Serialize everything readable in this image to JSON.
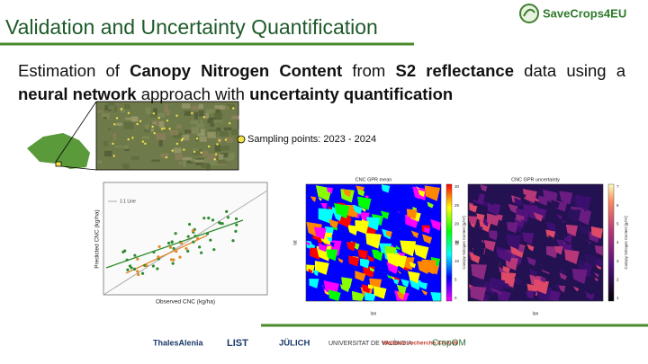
{
  "header": {
    "title": "Validation and Uncertainty Quantification",
    "brand": "SaveCrops4EU"
  },
  "body": {
    "segments": [
      {
        "text": "Estimation of ",
        "bold": false
      },
      {
        "text": "Canopy Nitrogen Content",
        "bold": true
      },
      {
        "text": " from ",
        "bold": false
      },
      {
        "text": "S2 reflectance",
        "bold": true
      },
      {
        "text": " data using a ",
        "bold": false
      },
      {
        "text": "neural network",
        "bold": true
      },
      {
        "text": " approach with ",
        "bold": false
      },
      {
        "text": "uncertainty quantification",
        "bold": true
      }
    ]
  },
  "map_caption": "Sampling points: 2023 - 2024",
  "scatter": {
    "x_label": "Observed CNC (kg/ha)",
    "y_label": "Predicted CNC (kg/ha)",
    "legend_line": "1:1 Line"
  },
  "maps": [
    {
      "title": "CNC GPR mean",
      "x_label": "lon",
      "y_label": "lat",
      "cbar_label": "Canopy Nitrogen Content [g/m²]",
      "cbar_ticks": [
        "30",
        "25",
        "20",
        "15",
        "10",
        "5",
        "0"
      ],
      "palette": "rainbow"
    },
    {
      "title": "CNC GPR uncertainty",
      "x_label": "lon",
      "y_label": "lat",
      "cbar_label": "Canopy Nitrogen Content [g/m²]",
      "cbar_ticks": [
        "7",
        "6",
        "5",
        "4",
        "3",
        "2",
        "1"
      ],
      "palette": "magma"
    }
  ],
  "logos": [
    "ThalesAlenia",
    "LIST",
    "JÜLICH",
    "UNIVERSITAT DE VALÈNCIA",
    "Wallonie recherche CRA-W",
    "CropOM"
  ]
}
